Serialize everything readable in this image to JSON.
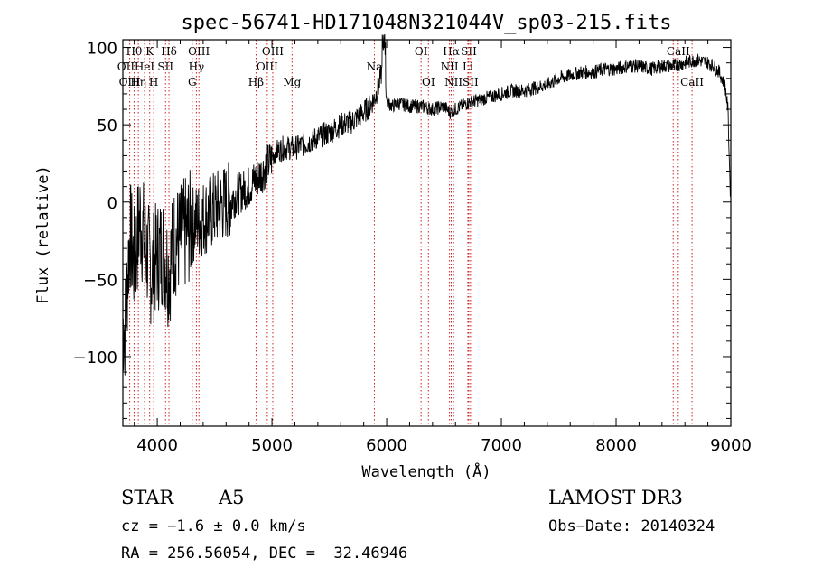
{
  "chart_data": {
    "type": "line",
    "title": "spec-56741-HD171048N321044V_sp03-215.fits",
    "xlabel": "Wavelength (Å)",
    "ylabel": "Flux (relative)",
    "xlim": [
      3700,
      9000
    ],
    "ylim": [
      -145,
      105
    ],
    "xticks": [
      4000,
      5000,
      6000,
      7000,
      8000,
      9000
    ],
    "yticks": [
      -100,
      -50,
      0,
      50,
      100
    ],
    "xtick_labels": [
      "4000",
      "5000",
      "6000",
      "7000",
      "8000",
      "9000"
    ],
    "ytick_labels": [
      "−100",
      "−50",
      "0",
      "50",
      "100"
    ],
    "series": [
      {
        "name": "flux",
        "x": [
          3720,
          3760,
          3800,
          3850,
          3900,
          3950,
          4000,
          4050,
          4100,
          4150,
          4200,
          4300,
          4400,
          4500,
          4600,
          4700,
          4800,
          4900,
          5000,
          5020,
          5100,
          5200,
          5300,
          5400,
          5500,
          5600,
          5700,
          5800,
          5850,
          5900,
          5930,
          5960,
          5980,
          6000,
          6050,
          6100,
          6200,
          6300,
          6400,
          6500,
          6550,
          6600,
          6650,
          6700,
          6800,
          6900,
          7000,
          7100,
          7200,
          7300,
          7400,
          7500,
          7600,
          7700,
          7800,
          7900,
          8000,
          8100,
          8200,
          8300,
          8400,
          8500,
          8600,
          8700,
          8800,
          8850,
          8900,
          8950,
          8975,
          8990,
          9000
        ],
        "values": [
          -80,
          -20,
          -40,
          -10,
          -30,
          -45,
          -35,
          -30,
          -45,
          -25,
          -25,
          -15,
          -10,
          -5,
          0,
          5,
          10,
          18,
          28,
          32,
          35,
          35,
          38,
          42,
          45,
          50,
          52,
          58,
          62,
          68,
          75,
          85,
          100,
          65,
          62,
          64,
          62,
          62,
          60,
          62,
          58,
          60,
          62,
          64,
          66,
          68,
          70,
          72,
          72,
          74,
          76,
          80,
          82,
          84,
          84,
          86,
          86,
          88,
          88,
          86,
          88,
          88,
          90,
          92,
          90,
          88,
          84,
          75,
          60,
          20,
          -5
        ]
      }
    ],
    "spectral_lines": [
      {
        "name": "Hθ",
        "wavelength": 3798,
        "row": 1
      },
      {
        "name": "OII",
        "wavelength": 3727,
        "row": 2
      },
      {
        "name": "OIII",
        "wavelength": 3760,
        "row": 3
      },
      {
        "name": "K",
        "wavelength": 3934,
        "row": 1
      },
      {
        "name": "HeI",
        "wavelength": 3889,
        "row": 2
      },
      {
        "name": "Hη",
        "wavelength": 3835,
        "row": 3
      },
      {
        "name": "Hδ",
        "wavelength": 4102,
        "row": 1
      },
      {
        "name": "SII",
        "wavelength": 4072,
        "row": 2
      },
      {
        "name": "H",
        "wavelength": 3969,
        "row": 3
      },
      {
        "name": "OIII",
        "wavelength": 4363,
        "row": 1
      },
      {
        "name": "Hγ",
        "wavelength": 4341,
        "row": 2
      },
      {
        "name": "G",
        "wavelength": 4305,
        "row": 3
      },
      {
        "name": "Hβ",
        "wavelength": 4861,
        "row": 3
      },
      {
        "name": "OIII",
        "wavelength": 5007,
        "row": 1
      },
      {
        "name": "OIII",
        "wavelength": 4959,
        "row": 2
      },
      {
        "name": "Mg",
        "wavelength": 5175,
        "row": 3
      },
      {
        "name": "Na",
        "wavelength": 5893,
        "row": 2
      },
      {
        "name": "OI",
        "wavelength": 6300,
        "row": 1
      },
      {
        "name": "OI",
        "wavelength": 6364,
        "row": 3
      },
      {
        "name": "Hα",
        "wavelength": 6563,
        "row": 1
      },
      {
        "name": "NII",
        "wavelength": 6548,
        "row": 2
      },
      {
        "name": "NII",
        "wavelength": 6583,
        "row": 3
      },
      {
        "name": "SII",
        "wavelength": 6716,
        "row": 1
      },
      {
        "name": "Li",
        "wavelength": 6708,
        "row": 2
      },
      {
        "name": "SII",
        "wavelength": 6731,
        "row": 3
      },
      {
        "name": "CaII",
        "wavelength": 8542,
        "row": 1
      },
      {
        "name": "CaII",
        "wavelength": 8498,
        "row": 2
      },
      {
        "name": "CaII",
        "wavelength": 8662,
        "row": 3
      }
    ]
  },
  "info": {
    "object_class": "STAR",
    "subclass": "A5",
    "survey": "LAMOST DR3",
    "cz": "cz = −1.6 ± 0.0 km/s",
    "obs_date": "Obs−Date: 20140324",
    "coords": "RA = 256.56054, DEC =  32.46946"
  },
  "colors": {
    "spectral_line": "#cc2020",
    "trace": "#000000",
    "axis": "#000000"
  }
}
